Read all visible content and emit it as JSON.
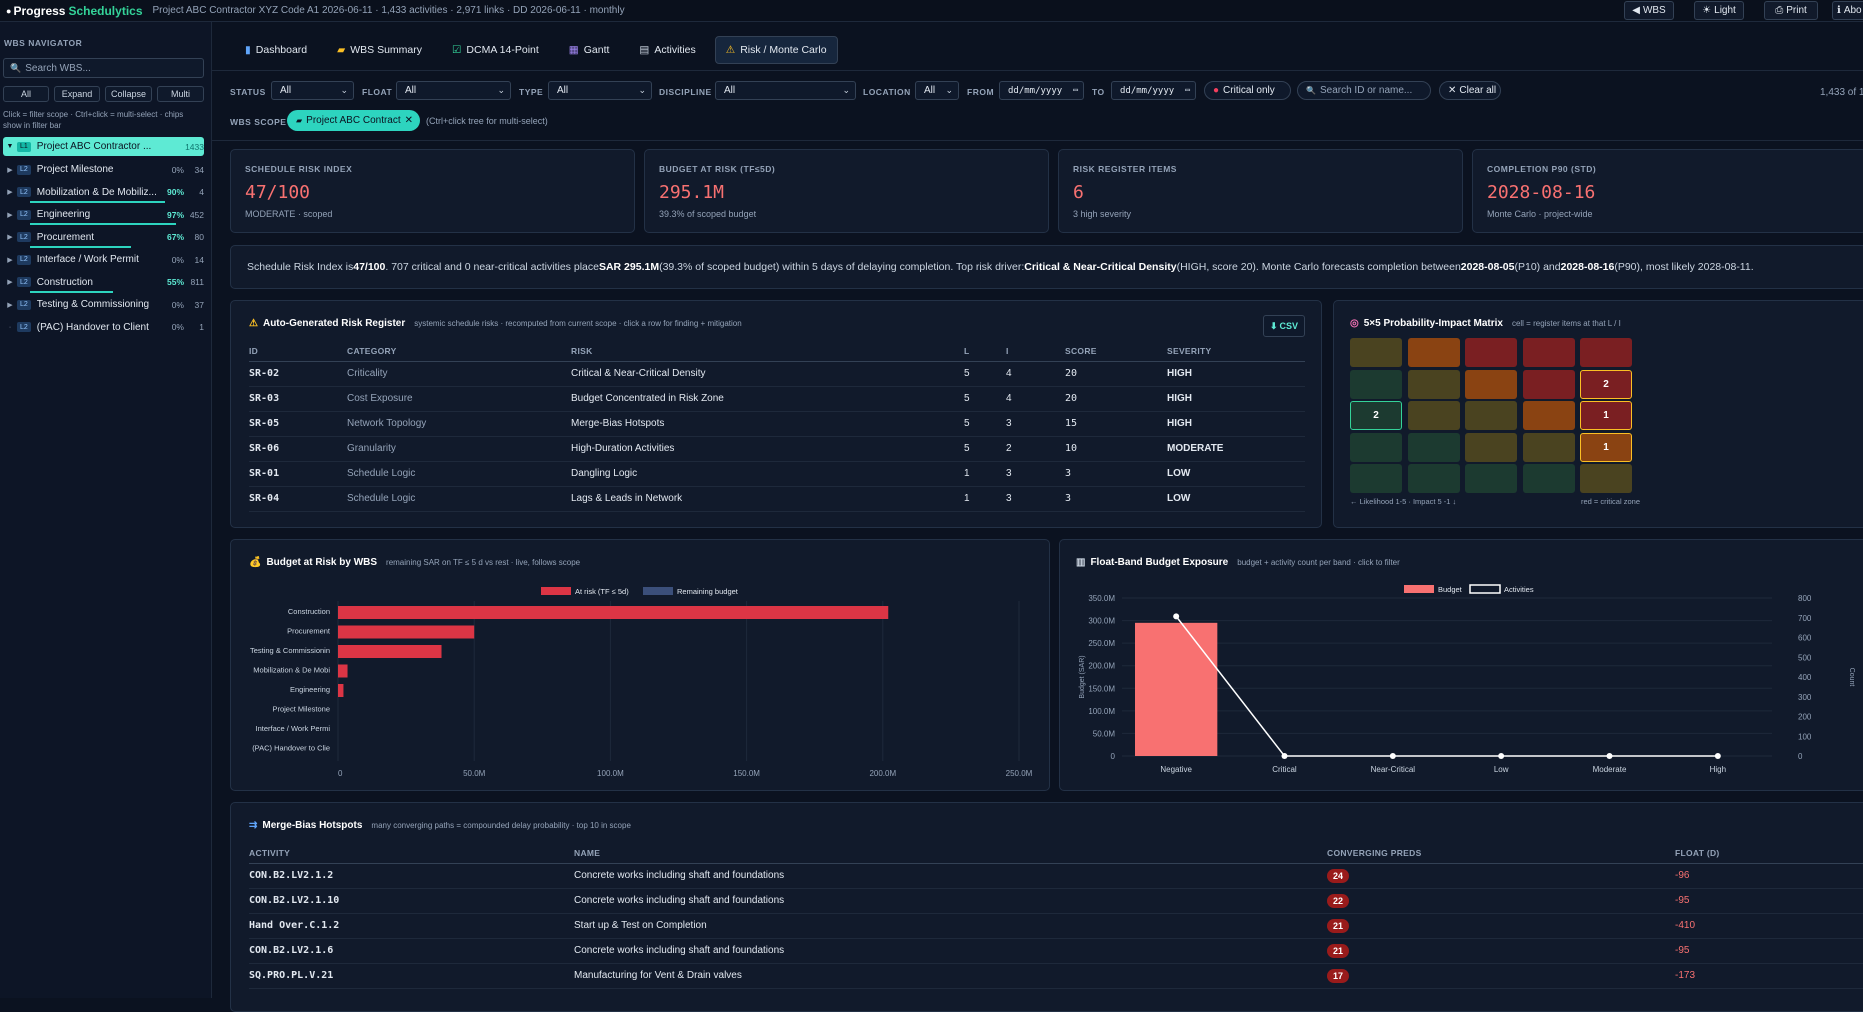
{
  "app": {
    "brand": "Progress",
    "brand_accent": "Schedulytics",
    "subtitle": "Project ABC Contractor XYZ Code A1 2026-06-11 · 1,433 activities · 2,971 links · DD 2026-06-11 · monthly"
  },
  "top_buttons": {
    "wbs": "WBS",
    "light": "Light",
    "print": "Print",
    "about": "Abo"
  },
  "sidebar": {
    "title": "WBS NAVIGATOR",
    "search_placeholder": "Search WBS...",
    "buttons": {
      "all": "All",
      "expand": "Expand",
      "collapse": "Collapse",
      "multi": "Multi"
    },
    "hint": "Click = filter scope · Ctrl+click = multi-select · chips show in filter bar",
    "root": {
      "name": "Project ABC Contractor ...",
      "count": "1433"
    },
    "items": [
      {
        "level": "L2",
        "name": "Project Milestone",
        "pct": "0%",
        "count": "34",
        "progress": 0
      },
      {
        "level": "L2",
        "name": "Mobilization & De Mobiliz...",
        "pct": "90%",
        "count": "4",
        "progress": 0.9
      },
      {
        "level": "L2",
        "name": "Engineering",
        "pct": "97%",
        "count": "452",
        "progress": 0.97
      },
      {
        "level": "L2",
        "name": "Procurement",
        "pct": "67%",
        "count": "80",
        "progress": 0.67
      },
      {
        "level": "L2",
        "name": "Interface / Work Permit",
        "pct": "0%",
        "count": "14",
        "progress": 0
      },
      {
        "level": "L2",
        "name": "Construction",
        "pct": "55%",
        "count": "811",
        "progress": 0.55
      },
      {
        "level": "L2",
        "name": "Testing & Commissioning",
        "pct": "0%",
        "count": "37",
        "progress": 0
      },
      {
        "level": "L2",
        "name": "(PAC) Handover to Client",
        "pct": "0%",
        "count": "1",
        "progress": 0
      }
    ]
  },
  "tabs": [
    {
      "label": "Dashboard",
      "icon": "chart-icon"
    },
    {
      "label": "WBS Summary",
      "icon": "folder-icon"
    },
    {
      "label": "DCMA 14-Point",
      "icon": "checkbox-icon"
    },
    {
      "label": "Gantt",
      "icon": "calendar-icon"
    },
    {
      "label": "Activities",
      "icon": "clipboard-icon"
    },
    {
      "label": "Risk / Monte Carlo",
      "icon": "warning-icon"
    }
  ],
  "filters": {
    "status_label": "STATUS",
    "status_value": "All",
    "float_label": "FLOAT",
    "float_value": "All",
    "type_label": "TYPE",
    "type_value": "All",
    "discipline_label": "DISCIPLINE",
    "discipline_value": "All",
    "location_label": "LOCATION",
    "location_value": "All",
    "from_label": "FROM",
    "from_value": "dd/mm/yyyy",
    "to_label": "TO",
    "to_value": "dd/mm/yyyy",
    "critical_only": "Critical only",
    "search_placeholder": "Search ID or name...",
    "clear_all": "Clear all",
    "count": "1,433 of 1",
    "wbs_scope_label": "WBS SCOPE",
    "wbs_chip": "Project ABC Contract",
    "wbs_hint": "(Ctrl+click tree for multi-select)"
  },
  "kpis": [
    {
      "title": "SCHEDULE RISK INDEX",
      "value": "47/100",
      "sub": "MODERATE · scoped"
    },
    {
      "title": "BUDGET AT RISK (TF≤5D)",
      "value": "295.1M",
      "sub": "39.3% of scoped budget"
    },
    {
      "title": "RISK REGISTER ITEMS",
      "value": "6",
      "sub": "3 high severity"
    },
    {
      "title": "COMPLETION P90 (STD)",
      "value": "2028-08-16",
      "sub": "Monte Carlo · project-wide"
    }
  ],
  "summary": {
    "p1": "Schedule Risk Index is ",
    "b1": "47/100",
    "p2": ". 707 critical and 0 near-critical activities place ",
    "b2": "SAR 295.1M",
    "p3": " (39.3% of scoped budget) within 5 days of delaying completion. Top risk driver: ",
    "b3": "Critical & Near-Critical Density",
    "p4": " (HIGH, score 20). Monte Carlo forecasts completion between ",
    "b4": "2028-08-05",
    "p5": " (P10) and ",
    "b5": "2028-08-16",
    "p6": " (P90), most likely 2028-08-11."
  },
  "register": {
    "title": "Auto-Generated Risk Register",
    "subtitle": "systemic schedule risks · recomputed from current scope · click a row for finding + mitigation",
    "csv": "CSV",
    "headers": {
      "id": "ID",
      "category": "CATEGORY",
      "risk": "RISK",
      "l": "L",
      "i": "I",
      "score": "SCORE",
      "severity": "SEVERITY"
    },
    "rows": [
      {
        "id": "SR-02",
        "category": "Criticality",
        "risk": "Critical & Near-Critical Density",
        "l": "5",
        "i": "4",
        "score": "20",
        "severity": "HIGH"
      },
      {
        "id": "SR-03",
        "category": "Cost Exposure",
        "risk": "Budget Concentrated in Risk Zone",
        "l": "5",
        "i": "4",
        "score": "20",
        "severity": "HIGH"
      },
      {
        "id": "SR-05",
        "category": "Network Topology",
        "risk": "Merge-Bias Hotspots",
        "l": "5",
        "i": "3",
        "score": "15",
        "severity": "HIGH"
      },
      {
        "id": "SR-06",
        "category": "Granularity",
        "risk": "High-Duration Activities",
        "l": "5",
        "i": "2",
        "score": "10",
        "severity": "MODERATE"
      },
      {
        "id": "SR-01",
        "category": "Schedule Logic",
        "risk": "Dangling Logic",
        "l": "1",
        "i": "3",
        "score": "3",
        "severity": "LOW"
      },
      {
        "id": "SR-04",
        "category": "Schedule Logic",
        "risk": "Lags & Leads in Network",
        "l": "1",
        "i": "3",
        "score": "3",
        "severity": "LOW"
      }
    ]
  },
  "matrix": {
    "title": "5×5 Probability-Impact Matrix",
    "subtitle": "cell = register items at that L / I",
    "footer_left": "← Likelihood 1-5 · Impact 5 -1 ↓",
    "footer_right": "red = critical zone",
    "colors": [
      [
        "#4a4320",
        "#8a4312",
        "#7a1f22",
        "#7a1f22",
        "#7a1f22"
      ],
      [
        "#1c3a30",
        "#4a4320",
        "#8a4312",
        "#7a1f22",
        "#7a1f22"
      ],
      [
        "#1c3a30",
        "#4a4320",
        "#4a4320",
        "#8a4312",
        "#7a1f22"
      ],
      [
        "#1c3a30",
        "#1c3a30",
        "#4a4320",
        "#4a4320",
        "#8a4312"
      ],
      [
        "#1c3a30",
        "#1c3a30",
        "#1c3a30",
        "#1c3a30",
        "#4a4320"
      ]
    ],
    "values": [
      [
        "",
        "",
        "",
        "",
        ""
      ],
      [
        "",
        "",
        "",
        "",
        "2"
      ],
      [
        "2",
        "",
        "",
        "",
        "1"
      ],
      [
        "",
        "",
        "",
        "",
        "1"
      ],
      [
        "",
        "",
        "",
        "",
        ""
      ]
    ]
  },
  "budget_chart": {
    "title": "Budget at Risk by WBS",
    "subtitle": "remaining SAR on TF ≤ 5 d vs rest · live, follows scope"
  },
  "float_chart": {
    "title": "Float-Band Budget Exposure",
    "subtitle": "budget + activity count per band · click to filter"
  },
  "chart_data": [
    {
      "type": "bar",
      "orientation": "horizontal",
      "categories": [
        "Construction",
        "Procurement",
        "Testing & Commissionin",
        "Mobilization & De Mobi",
        "Engineering",
        "Project Milestone",
        "Interface / Work Permi",
        "(PAC) Handover to Clie"
      ],
      "series": [
        {
          "name": "At risk (TF ≤ 5d)",
          "color": "#dc3545",
          "values": [
            202,
            50,
            38,
            3.5,
            2,
            0,
            0,
            0
          ]
        },
        {
          "name": "Remaining budget",
          "color": "#3b4f7a",
          "values": [
            0,
            0,
            0,
            0,
            0,
            0,
            0,
            0
          ]
        }
      ],
      "xticks": [
        "0",
        "50.0M",
        "100.0M",
        "150.0M",
        "200.0M",
        "250.0M"
      ],
      "xlim": [
        0,
        250
      ],
      "legend": "top"
    },
    {
      "type": "bar+line",
      "categories": [
        "Negative",
        "Critical",
        "Near-Critical",
        "Low",
        "Moderate",
        "High"
      ],
      "series": [
        {
          "name": "Budget",
          "color": "#f87171",
          "values": [
            295,
            0,
            0,
            0,
            0,
            0
          ]
        },
        {
          "name": "Activities",
          "color": "#ffffff",
          "values": [
            707,
            0,
            0,
            0,
            0,
            0
          ]
        }
      ],
      "yticks_left": [
        "350.0M",
        "300.0M",
        "250.0M",
        "200.0M",
        "150.0M",
        "100.0M",
        "50.0M",
        "0"
      ],
      "yticks_right": [
        "800",
        "700",
        "600",
        "500",
        "400",
        "300",
        "200",
        "100",
        "0"
      ],
      "ylim_left": [
        0,
        350
      ],
      "ylim_right": [
        0,
        800
      ],
      "ylabel_left": "Budget (SAR)",
      "ylabel_right": "Count",
      "legend": "top"
    }
  ],
  "merge": {
    "title": "Merge-Bias Hotspots",
    "subtitle": "many converging paths = compounded delay probability · top 10 in scope",
    "headers": {
      "activity": "ACTIVITY",
      "name": "NAME",
      "preds": "CONVERGING PREDS",
      "float": "FLOAT (D)"
    },
    "rows": [
      {
        "activity": "CON.B2.LV2.1.2",
        "name": "Concrete works including shaft and foundations",
        "preds": "24",
        "float": "-96"
      },
      {
        "activity": "CON.B2.LV2.1.10",
        "name": "Concrete works including shaft and foundations",
        "preds": "22",
        "float": "-95"
      },
      {
        "activity": "Hand Over.C.1.2",
        "name": "Start up & Test on Completion",
        "preds": "21",
        "float": "-410"
      },
      {
        "activity": "CON.B2.LV2.1.6",
        "name": "Concrete works including shaft and foundations",
        "preds": "21",
        "float": "-95"
      },
      {
        "activity": "SQ.PRO.PL.V.21",
        "name": "Manufacturing for Vent & Drain valves",
        "preds": "17",
        "float": "-173"
      }
    ]
  }
}
